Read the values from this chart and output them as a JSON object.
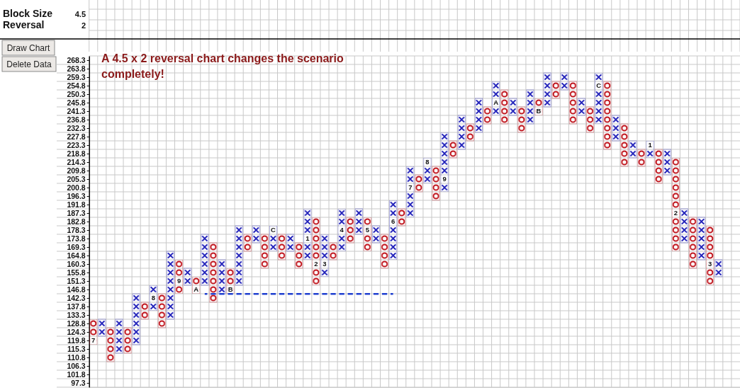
{
  "chart_data": {
    "type": "bar",
    "title": "A 4.5 x 2 reversal chart changes the scenario completely!",
    "annotations": [
      "Block Size",
      "4.5",
      "Reversal",
      "2",
      "Draw Chart",
      "Delete Data",
      "7",
      "8",
      "9",
      "A",
      "B",
      "C",
      "1",
      "2",
      "3",
      "4",
      "5",
      "6",
      "7",
      "8",
      "9",
      "A",
      "B",
      "C",
      "1",
      "2",
      "3"
    ],
    "categories": [
      null,
      null,
      null,
      null,
      null,
      null,
      null,
      null,
      null,
      null,
      null,
      null,
      null,
      null,
      null,
      null,
      null,
      null,
      null,
      null,
      null,
      null,
      null,
      null,
      null,
      null,
      null,
      null,
      null,
      null,
      null,
      null,
      null,
      null,
      null,
      null,
      null,
      null,
      null,
      null,
      null,
      null,
      null,
      null,
      null,
      null,
      null,
      null,
      null,
      null,
      null,
      null,
      null,
      null,
      null,
      null,
      null,
      null,
      null,
      null,
      null,
      null,
      null,
      null,
      null,
      null,
      null,
      null,
      null,
      null,
      null,
      null,
      null,
      null,
      null,
      null
    ],
    "series": [
      {
        "base": [
          131.05,
          122.05,
          126.55,
          113.05,
          126.55,
          117.55,
          140.05,
          135.55,
          144.55,
          131.05,
          162.55,
          149.05,
          153.55,
          149.05,
          171.55,
          144.55,
          158.05,
          149.05,
          176.05,
          171.55,
          176.05,
          167.05,
          176.05,
          167.05,
          171.55,
          162.55,
          185.05,
          153.55,
          171.55,
          167.05,
          185.05,
          176.05,
          185.05,
          171.55,
          176.05,
          162.55,
          189.55,
          185.05,
          207.55,
          203.05,
          212.05,
          198.55,
          225.55,
          221.05,
          234.55,
          230.05,
          243.55,
          239.05,
          252.55,
          239.05,
          243.55,
          234.55,
          248.05,
          243.55,
          257.05,
          252.55,
          257.05,
          239.05,
          243.55,
          234.55,
          257.05,
          225.55,
          234.55,
          216.55,
          221.05,
          216.55,
          221.05,
          207.55,
          216.55,
          171.55,
          185.05,
          162.55,
          180.55,
          153.55,
          null,
          null
        ],
        "values": [
          -13.5,
          9,
          -18,
          18,
          -13.5,
          27,
          -9,
          13.5,
          -18,
          36,
          -18,
          9,
          -9,
          27,
          -31.5,
          18,
          -13.5,
          31.5,
          -9,
          9,
          -18,
          13.5,
          -13.5,
          9,
          -13.5,
          27,
          -36,
          22.5,
          -9,
          22.5,
          -13.5,
          13.5,
          -18,
          9,
          -18,
          31.5,
          -9,
          27,
          -9,
          13.5,
          -18,
          31.5,
          -9,
          18,
          -9,
          18,
          -9,
          18,
          -18,
          9,
          -13.5,
          18,
          -9,
          18,
          -9,
          9,
          -22.5,
          9,
          -13.5,
          27,
          -36,
          13.5,
          -22.5,
          9,
          -9,
          9,
          -18,
          13.5,
          -49.5,
          18,
          -27,
          22.5,
          -31.5,
          9,
          null,
          null
        ],
        "colors": [
          "#c0141c",
          "#1c1cb8",
          "#c0141c",
          "#1c1cb8",
          "#c0141c",
          "#1c1cb8",
          "#c0141c",
          "#1c1cb8",
          "#c0141c",
          "#1c1cb8",
          "#c0141c",
          "#1c1cb8",
          "#c0141c",
          "#1c1cb8",
          "#c0141c",
          "#1c1cb8",
          "#c0141c",
          "#1c1cb8",
          "#c0141c",
          "#1c1cb8",
          "#c0141c",
          "#1c1cb8",
          "#c0141c",
          "#1c1cb8",
          "#c0141c",
          "#1c1cb8",
          "#c0141c",
          "#1c1cb8",
          "#c0141c",
          "#1c1cb8",
          "#c0141c",
          "#1c1cb8",
          "#c0141c",
          "#1c1cb8",
          "#c0141c",
          "#1c1cb8",
          "#c0141c",
          "#1c1cb8",
          "#c0141c",
          "#1c1cb8",
          "#c0141c",
          "#1c1cb8",
          "#c0141c",
          "#1c1cb8",
          "#c0141c",
          "#1c1cb8",
          "#c0141c",
          "#1c1cb8",
          "#c0141c",
          "#1c1cb8",
          "#c0141c",
          "#1c1cb8",
          "#c0141c",
          "#1c1cb8",
          "#c0141c",
          "#1c1cb8",
          "#c0141c",
          "#1c1cb8",
          "#c0141c",
          "#1c1cb8",
          "#c0141c",
          "#1c1cb8",
          "#c0141c",
          "#1c1cb8",
          "#c0141c",
          "#1c1cb8",
          "#c0141c",
          "#1c1cb8",
          "#c0141c",
          "#1c1cb8",
          "#c0141c",
          "#1c1cb8",
          "#c0141c",
          "#1c1cb8",
          null,
          null
        ]
      },
      {
        "type": "line",
        "color": "#1f3fd0",
        "values": [
          null,
          null,
          null,
          null,
          null,
          null,
          null,
          null,
          null,
          null,
          null,
          null,
          null,
          144.5,
          144.5,
          144.5,
          144.5,
          144.5,
          144.5,
          144.5,
          144.5,
          144.5,
          144.5,
          144.5,
          144.5,
          144.5,
          144.5,
          144.5,
          144.5,
          144.5,
          144.5,
          144.5,
          144.5,
          144.5,
          144.5,
          144.5,
          null,
          null,
          null,
          null,
          null,
          null,
          null,
          null,
          null,
          null,
          null,
          null,
          null,
          null,
          null,
          null,
          null,
          null,
          null,
          null,
          null,
          null,
          null,
          null,
          null,
          null,
          null,
          null,
          null,
          null,
          null,
          null,
          null,
          null,
          null,
          null,
          null,
          null,
          null,
          null
        ]
      }
    ],
    "line_style": "dashed",
    "ylim": [
      95.05,
      270.55
    ],
    "yticks": [
      97.3,
      101.8,
      106.3,
      110.8,
      115.3,
      119.8,
      124.3,
      128.8,
      133.3,
      137.8,
      142.3,
      146.8,
      151.3,
      155.8,
      160.3,
      164.8,
      169.3,
      173.8,
      178.3,
      182.8,
      187.3,
      191.8,
      196.3,
      200.8,
      205.3,
      209.8,
      214.3,
      218.8,
      223.3,
      227.8,
      232.3,
      236.8,
      241.3,
      245.8,
      250.3,
      254.8,
      259.3,
      263.8,
      268.3
    ],
    "grid": true
  }
}
